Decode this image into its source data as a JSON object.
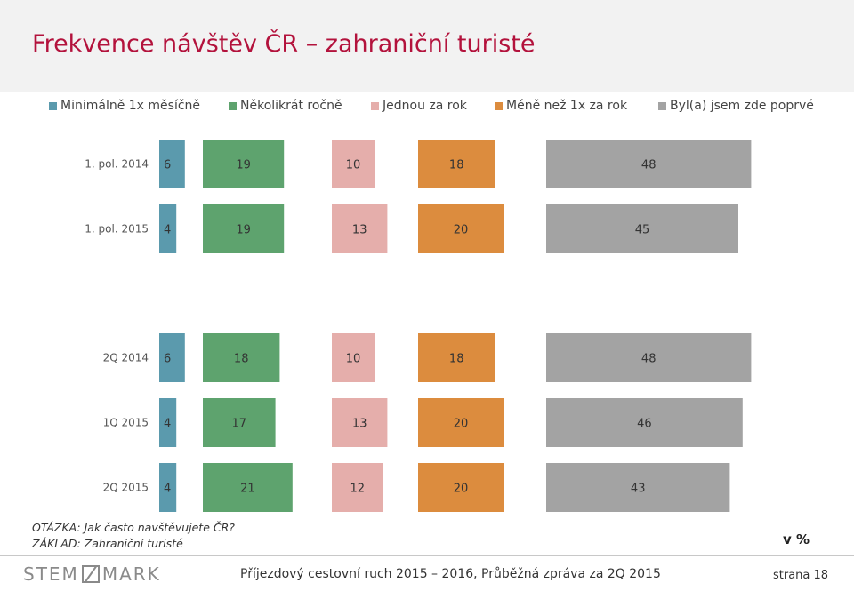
{
  "title": "Frekvence návštěv ČR – zahraniční turisté",
  "legend": [
    {
      "label": "Minimálně 1x měsíčně",
      "color": "#5b9aad"
    },
    {
      "label": "Několikrát ročně",
      "color": "#5ea36e"
    },
    {
      "label": "Jednou za rok",
      "color": "#e5aeab"
    },
    {
      "label": "Méně než 1x za rok",
      "color": "#dc8c3e"
    },
    {
      "label": "Byl(a) jsem zde poprvé",
      "color": "#a3a3a3"
    }
  ],
  "chart_data": {
    "type": "bar",
    "orientation": "horizontal",
    "stacked": false,
    "unit": "%",
    "categories": [
      "1. pol. 2014",
      "1. pol. 2015",
      "2Q 2014",
      "1Q 2015",
      "2Q 2015"
    ],
    "series": [
      {
        "name": "Minimálně 1x měsíčně",
        "color": "#5b9aad",
        "values": [
          6,
          4,
          6,
          4,
          4
        ]
      },
      {
        "name": "Několikrát ročně",
        "color": "#5ea36e",
        "values": [
          19,
          19,
          18,
          17,
          21
        ]
      },
      {
        "name": "Jednou za rok",
        "color": "#e5aeab",
        "values": [
          10,
          13,
          10,
          13,
          12
        ]
      },
      {
        "name": "Méně než 1x za rok",
        "color": "#dc8c3e",
        "values": [
          18,
          20,
          18,
          20,
          20
        ]
      },
      {
        "name": "Byl(a) jsem zde poprvé",
        "color": "#a3a3a3",
        "values": [
          48,
          45,
          48,
          46,
          43
        ]
      }
    ]
  },
  "notes": {
    "question": "OTÁZKA: Jak často navštěvujete ČR?",
    "base": "ZÁKLAD: Zahraniční turisté"
  },
  "unit_label": "v %",
  "footer": {
    "logo_left": "STEM",
    "logo_right": "MARK",
    "text": "Příjezdový cestovní ruch 2015 – 2016, Průběžná zpráva za 2Q 2015",
    "page": "strana 18"
  }
}
